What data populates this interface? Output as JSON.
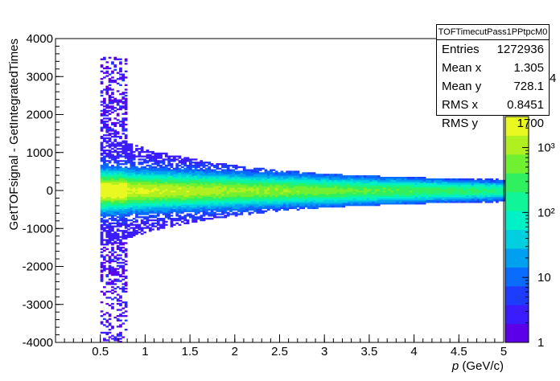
{
  "chart_data": {
    "type": "heatmap",
    "title": "",
    "xlabel_italic": "p",
    "xlabel_rest": " (GeV/c)",
    "ylabel": "GetTOFsignal - GetIntegratedTimes",
    "xlim": [
      0,
      5
    ],
    "ylim": [
      -4000,
      4000
    ],
    "x_ticks": [
      0.5,
      1,
      1.5,
      2,
      2.5,
      3,
      3.5,
      4,
      4.5,
      5
    ],
    "x_tick_labels": [
      "0.5",
      "1",
      "1.5",
      "2",
      "2.5",
      "3",
      "3.5",
      "4",
      "4.5",
      "5"
    ],
    "y_ticks": [
      -4000,
      -3000,
      -2000,
      -1000,
      0,
      1000,
      2000,
      3000,
      4000
    ],
    "y_tick_labels": [
      "-4000",
      "-3000",
      "-2000",
      "-1000",
      "0",
      "1000",
      "2000",
      "3000",
      "4000"
    ],
    "z_scale": "log",
    "z_range": [
      1,
      3000
    ],
    "z_ticks": [
      1,
      10,
      100,
      1000
    ],
    "z_tick_labels": [
      "1",
      "10",
      "10²",
      "10³"
    ],
    "palette": [
      "#5b00e8",
      "#3a1cff",
      "#1e3cff",
      "#0a6cff",
      "#00a0f0",
      "#00cfe0",
      "#00f0c8",
      "#10f598",
      "#30f060",
      "#70f030",
      "#b0f020",
      "#e8f820"
    ],
    "distribution": {
      "x_start": 0.5,
      "x_end": 5.0,
      "band_center": 0,
      "core_width_at_0p6": 350,
      "core_width_at_5": 150,
      "outer_extent_at_0p6": 1400,
      "outer_extent_at_5": 250,
      "tail_range": [
        -4000,
        3500
      ],
      "tail_x_range": [
        0.5,
        0.8
      ]
    },
    "stats": {
      "name": "TOFTimecutPass1PPtpcM0",
      "entries": "1272936",
      "mean_x": "1.305",
      "mean_y": "728.1",
      "rms_x": "0.8451",
      "rms_y": "1700"
    },
    "stats_labels": {
      "entries": "Entries",
      "mean_x": "Mean x",
      "mean_y": "Mean y",
      "rms_x": "RMS x",
      "rms_y": "RMS y"
    },
    "exponent_hint": "4"
  }
}
